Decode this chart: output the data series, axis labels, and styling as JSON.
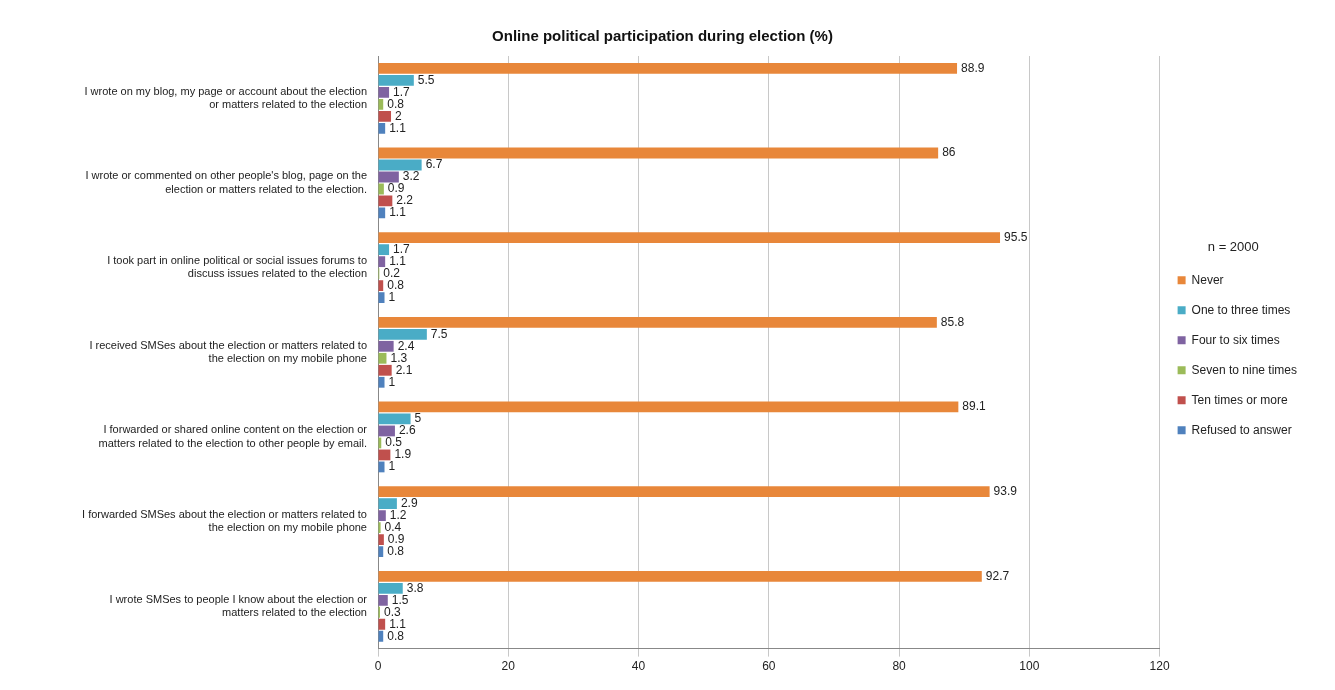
{
  "chart_data": {
    "type": "bar",
    "orientation": "horizontal",
    "title": "Online political participation during election (%)",
    "legend_title": "n = 2000",
    "categories": [
      "I wrote on my blog, my page or account about the election or matters related to the election",
      "I wrote or commented on other people's blog, page on the election or matters related to the election.",
      "I took part in online political or social issues forums to discuss issues related to the election",
      "I received SMSes about the election or matters related to the election on my mobile phone",
      "I forwarded or shared online content on the election or matters related to the election to other people by email.",
      "I forwarded SMSes about the election or matters related to the election on my mobile phone",
      "I wrote SMSes to people I know about the election or matters related to the election"
    ],
    "series": [
      {
        "name": "Never",
        "color": "#e8873a",
        "values": [
          88.9,
          86,
          95.5,
          85.8,
          89.1,
          93.9,
          92.7
        ]
      },
      {
        "name": "One to three times",
        "color": "#4aacc6",
        "values": [
          5.5,
          6.7,
          1.7,
          7.5,
          5,
          2.9,
          3.8
        ]
      },
      {
        "name": "Four to six times",
        "color": "#7f63a1",
        "values": [
          1.7,
          3.2,
          1.1,
          2.4,
          2.6,
          1.2,
          1.5
        ]
      },
      {
        "name": "Seven to nine times",
        "color": "#9bbb59",
        "values": [
          0.8,
          0.9,
          0.2,
          1.3,
          0.5,
          0.4,
          0.3
        ]
      },
      {
        "name": "Ten times or more",
        "color": "#c0504d",
        "values": [
          2,
          2.2,
          0.8,
          2.1,
          1.9,
          0.9,
          1.1
        ]
      },
      {
        "name": "Refused to answer",
        "color": "#4f81bd",
        "values": [
          1.1,
          1.1,
          1,
          1,
          1,
          0.8,
          0.8
        ]
      }
    ],
    "xlim": [
      0,
      120
    ],
    "xticks": [
      0,
      20,
      40,
      60,
      80,
      100,
      120
    ],
    "grid": "x",
    "legend": "right",
    "data_labels": true
  }
}
